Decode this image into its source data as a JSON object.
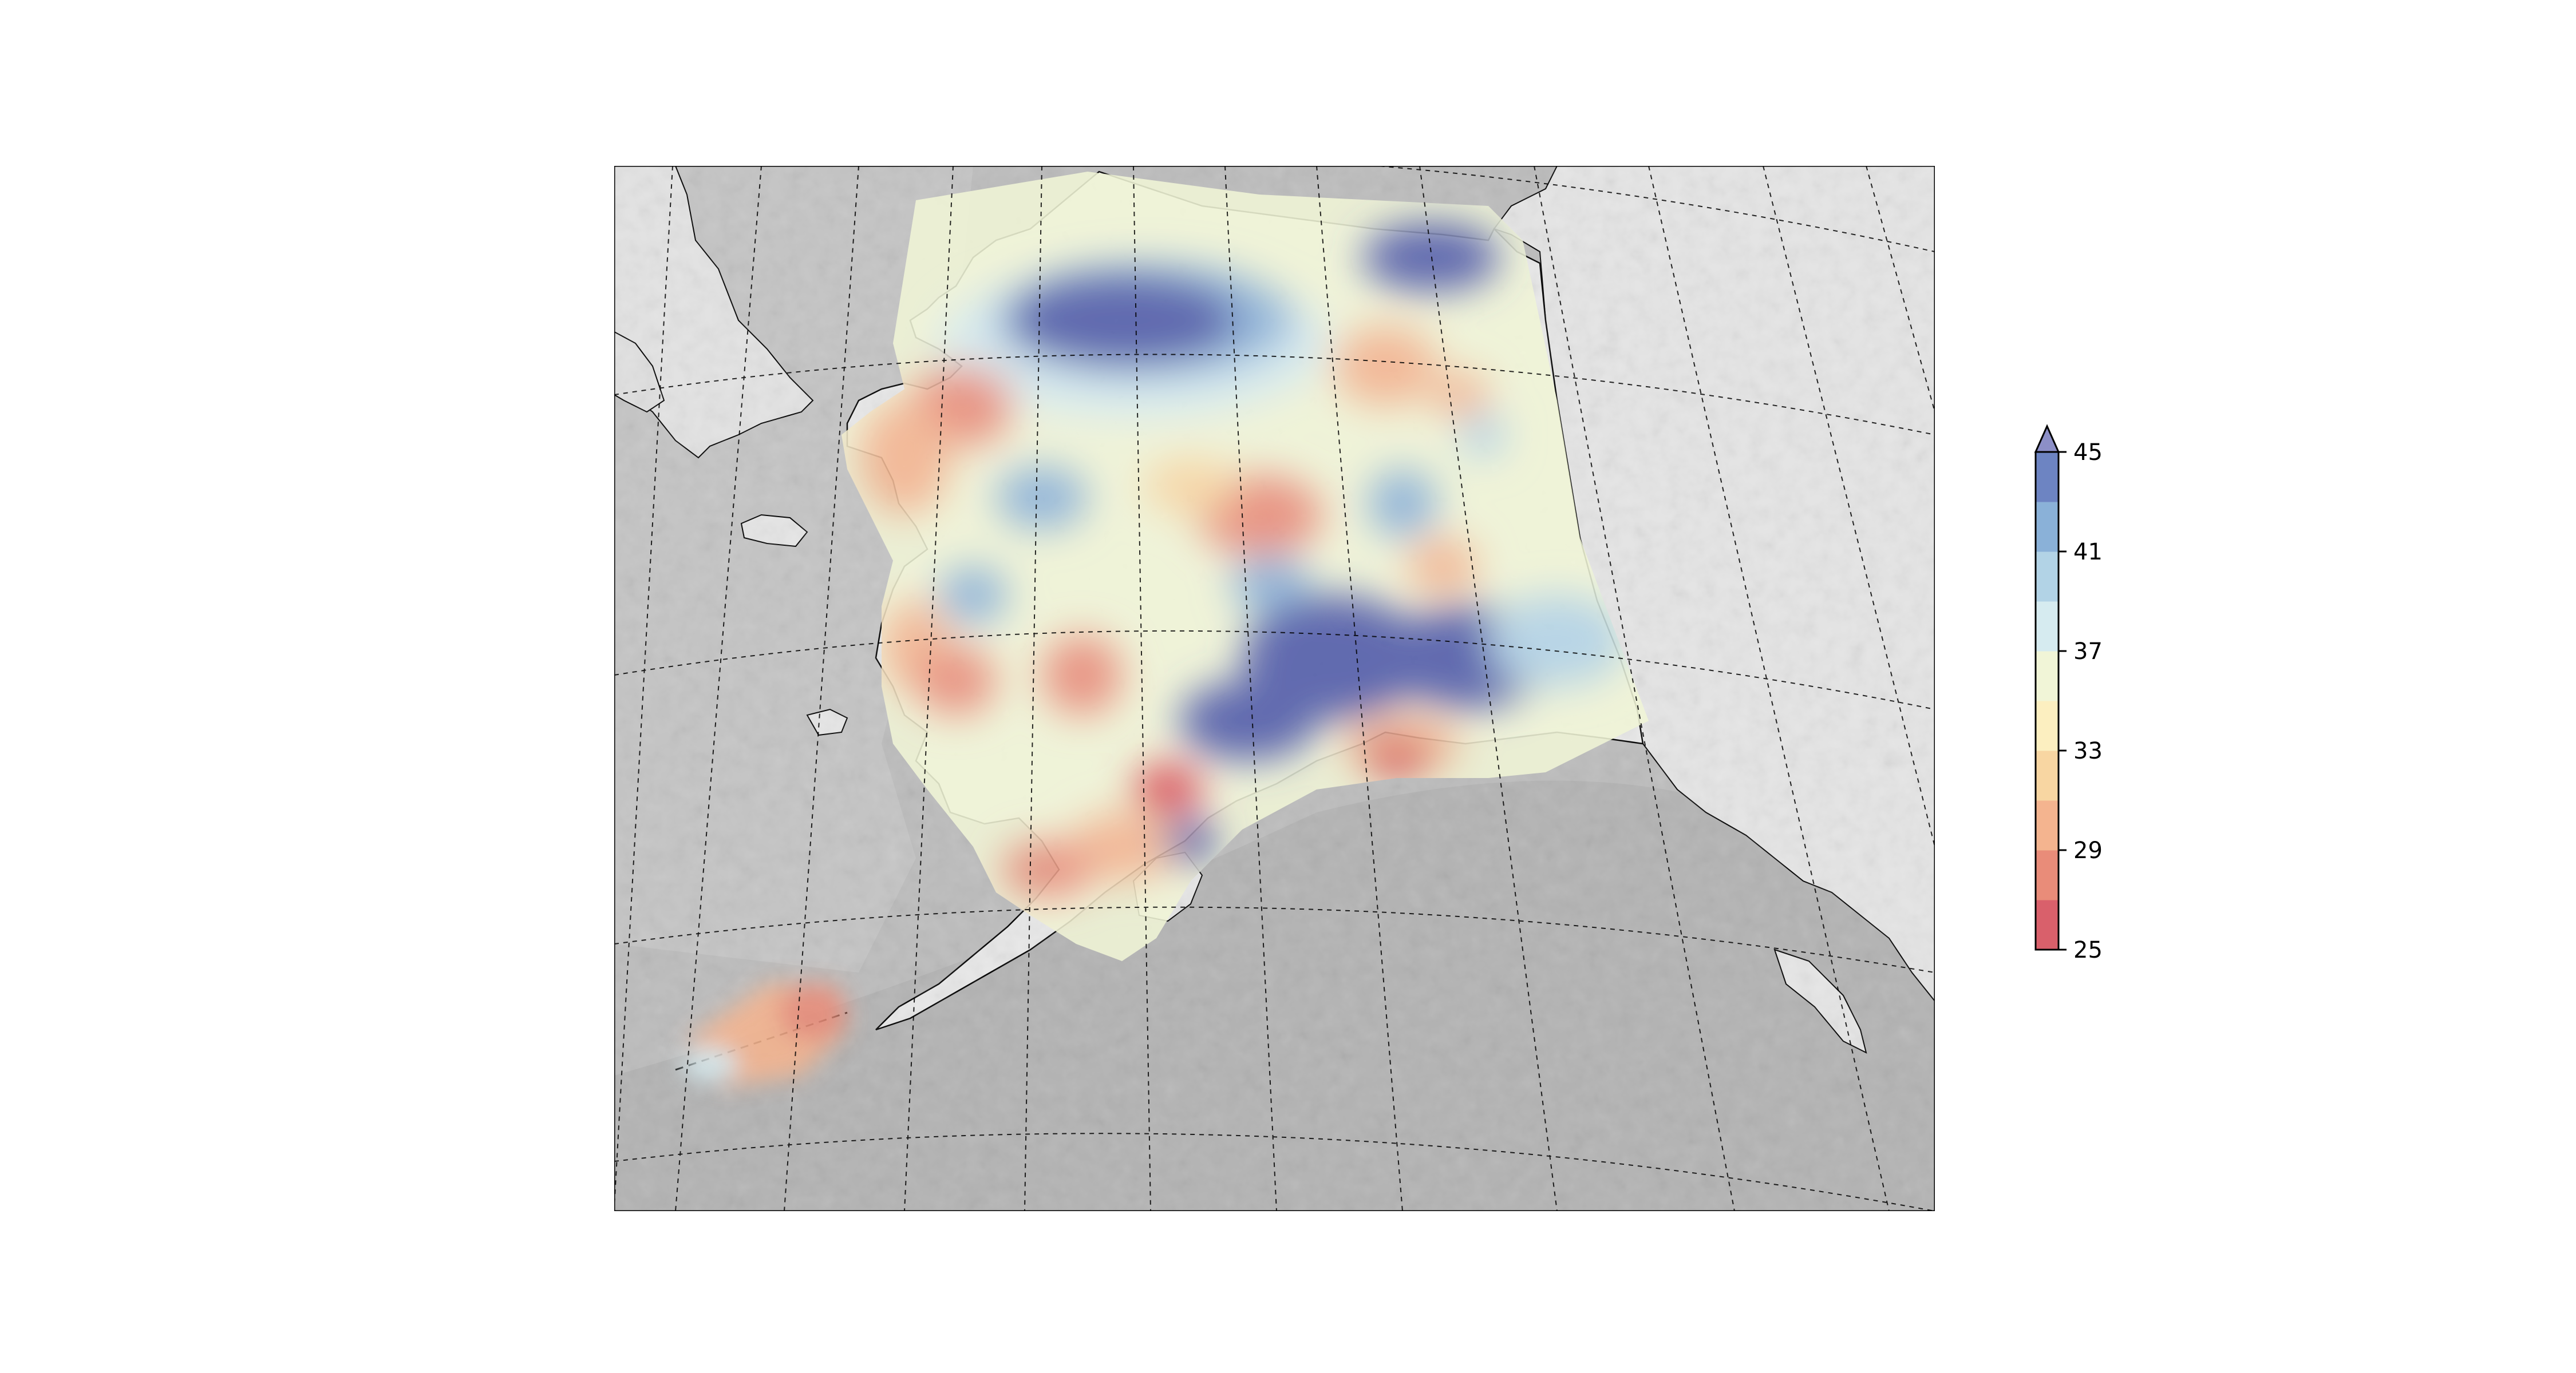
{
  "map": {
    "region": "Alaska",
    "projection": "conic",
    "basemap": "grey shaded relief",
    "graticule": "dashed",
    "coastline_color": "#000000"
  },
  "colorbar": {
    "orientation": "vertical",
    "extend": "max",
    "min": 25,
    "max": 45,
    "ticks": [
      "25",
      "29",
      "33",
      "37",
      "41",
      "45"
    ],
    "levels": [
      25,
      27,
      29,
      31,
      33,
      35,
      37,
      39,
      41,
      43,
      45
    ],
    "colors": [
      "#d9606b",
      "#e98c79",
      "#f4b48f",
      "#f8d6a2",
      "#fcefc0",
      "#f1f5d7",
      "#d6ebf0",
      "#b2d3e6",
      "#8ab1d8",
      "#6d84c2"
    ],
    "extend_color": "#8c8fc7"
  },
  "colors": {
    "land": "#e6e6e6",
    "ocean": "#bcbcbc",
    "deep_red": "#d9454f",
    "deep_blue": "#4f5aa8"
  }
}
